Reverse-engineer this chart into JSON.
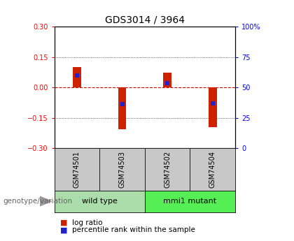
{
  "title": "GDS3014 / 3964",
  "samples": [
    "GSM74501",
    "GSM74503",
    "GSM74502",
    "GSM74504"
  ],
  "groups": [
    {
      "name": "wild type",
      "indices": [
        0,
        1
      ],
      "color": "#aaddaa"
    },
    {
      "name": "mmi1 mutant",
      "indices": [
        2,
        3
      ],
      "color": "#55ee55"
    }
  ],
  "log_ratios": [
    0.1,
    -0.205,
    0.072,
    -0.195
  ],
  "percentile_offsets": [
    0.06,
    -0.082,
    0.02,
    -0.08
  ],
  "ylim": [
    -0.3,
    0.3
  ],
  "yticks_left": [
    -0.3,
    -0.15,
    0.0,
    0.15,
    0.3
  ],
  "yticks_right": [
    0,
    25,
    50,
    75,
    100
  ],
  "bar_color": "#cc2200",
  "percentile_color": "#2222cc",
  "zero_line_color": "#cc0000",
  "background_label": "#c8c8c8",
  "legend_log_ratio": "log ratio",
  "legend_percentile": "percentile rank within the sample",
  "genotype_label": "genotype/variation"
}
